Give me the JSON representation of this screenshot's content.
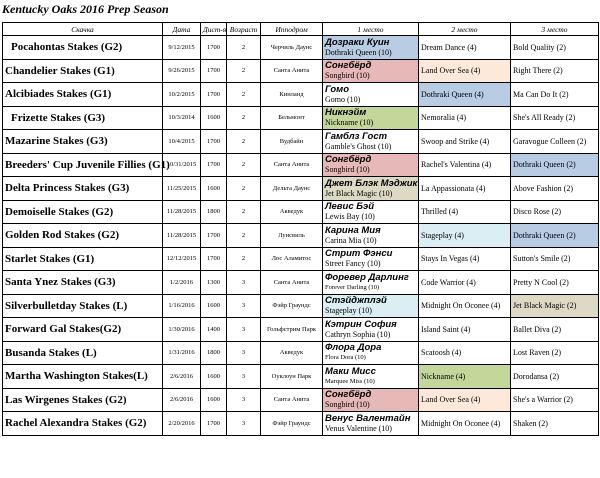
{
  "title": "Kentucky Oaks 2016 Prep Season",
  "headers": [
    "Скачка",
    "Дата",
    "Дист-я",
    "Возраст",
    "Ипподром",
    "1 место",
    "2 место",
    "3 место"
  ],
  "colors": {
    "blue": "#b8cce4",
    "pink": "#e6b8b7",
    "green": "#c4d79b",
    "peach": "#fde9d9",
    "cyan": "#daeef3",
    "tan": "#ddd9c4"
  },
  "rows": [
    {
      "race": "Pocahontas Stakes (G2)",
      "indent": true,
      "date": "9/12/2015",
      "dist": "1700",
      "age": "2",
      "track": "Черчиль Даунс",
      "winner": "Дозраки Куин",
      "winner_sub": "Dothraki Queen (10)",
      "second": "Dream Dance (4)",
      "third": "Bold Quality (2)",
      "winner_color": "blue",
      "second_color": "",
      "third_color": ""
    },
    {
      "race": "Chandelier Stakes (G1)",
      "indent": false,
      "date": "9/26/2015",
      "dist": "1700",
      "age": "2",
      "track": "Санта Анита",
      "winner": "Сонгбёрд",
      "winner_sub": "Songbird (10)",
      "second": "Land Over Sea (4)",
      "third": "Right There (2)",
      "winner_color": "pink",
      "second_color": "peach",
      "third_color": ""
    },
    {
      "race": "Alcibiades Stakes (G1)",
      "indent": false,
      "date": "10/2/2015",
      "dist": "1700",
      "age": "2",
      "track": "Кинланд",
      "winner": "Гомо",
      "winner_sub": "Gomo (10)",
      "second": "Dothraki Queen (4)",
      "third": "Ma Can Do It (2)",
      "winner_color": "",
      "second_color": "blue",
      "third_color": ""
    },
    {
      "race": "Frizette Stakes (G3)",
      "indent": true,
      "date": "10/3/2014",
      "dist": "1600",
      "age": "2",
      "track": "Бельмонт",
      "winner": "Никнэйм",
      "winner_sub": "Nickname (10)",
      "second": "Nemoralia (4)",
      "third": "She's All Ready (2)",
      "winner_color": "green",
      "second_color": "",
      "third_color": ""
    },
    {
      "race": "Mazarine Stakes (G3)",
      "indent": false,
      "date": "10/4/2015",
      "dist": "1700",
      "age": "2",
      "track": "Вудбайн",
      "winner": "Гамблз Гост",
      "winner_sub": "Gamble's Ghost (10)",
      "second": "Swoop and Strike (4)",
      "third": "Garavogue Colleen (2)",
      "winner_color": "",
      "second_color": "",
      "third_color": ""
    },
    {
      "race": "Breeders' Cup Juvenile Fillies (G1)",
      "indent": false,
      "date": "10/31/2015",
      "dist": "1700",
      "age": "2",
      "track": "Санта Анита",
      "winner": "Сонгбёрд",
      "winner_sub": "Songbird (10)",
      "second": "Rachel's Valentina (4)",
      "third": "Dothraki Queen (2)",
      "winner_color": "pink",
      "second_color": "",
      "third_color": "blue"
    },
    {
      "race": "Delta Princess Stakes (G3)",
      "indent": false,
      "date": "11/25/2015",
      "dist": "1600",
      "age": "2",
      "track": "Дельта Даунс",
      "winner": "Джет Блэк Мэджик",
      "winner_sub": "Jet Black Magic (10)",
      "second": "La Appassionata (4)",
      "third": "Above Fashion (2)",
      "winner_color": "tan",
      "second_color": "",
      "third_color": ""
    },
    {
      "race": "Demoiselle Stakes (G2)",
      "indent": false,
      "date": "11/28/2015",
      "dist": "1800",
      "age": "2",
      "track": "Акведук",
      "winner": "Левис Бэй",
      "winner_sub": "Lewis Bay (10)",
      "second": "Thrilled (4)",
      "third": "Disco Rose (2)",
      "winner_color": "",
      "second_color": "",
      "third_color": ""
    },
    {
      "race": "Golden Rod Stakes (G2)",
      "indent": false,
      "date": "11/28/2015",
      "dist": "1700",
      "age": "2",
      "track": "Луисвиль",
      "winner": "Карина Мия",
      "winner_sub": "Carina Mia (10)",
      "second": "Stageplay (4)",
      "third": "Dothraki Queen (2)",
      "winner_color": "",
      "second_color": "cyan",
      "third_color": "blue"
    },
    {
      "race": "Starlet Stakes (G1)",
      "indent": false,
      "date": "12/12/2015",
      "dist": "1700",
      "age": "2",
      "track": "Лос Аламитос",
      "winner": "Стрит Фэнси",
      "winner_sub": "Street Fancy (10)",
      "second": "Stays In Vegas (4)",
      "third": "Sutton's Smile (2)",
      "winner_color": "",
      "second_color": "",
      "third_color": ""
    },
    {
      "race": "Santa Ynez Stakes (G3)",
      "indent": false,
      "date": "1/2/2016",
      "dist": "1300",
      "age": "3",
      "track": "Санта Анита",
      "winner": "Форевер Дарлинг",
      "winner_sub": "Forever Darling (10)",
      "winner_sub_small": true,
      "second": "Code Warrior (4)",
      "third": "Pretty N Cool (2)",
      "winner_color": "",
      "second_color": "",
      "third_color": ""
    },
    {
      "race": "Silverbulletday Stakes (L)",
      "indent": false,
      "date": "1/16/2016",
      "dist": "1600",
      "age": "3",
      "track": "Фэйр Граундс",
      "winner": "Стэйджплэй",
      "winner_sub": "Stageplay (10)",
      "second": "Midnight On Oconee (4)",
      "third": "Jet Black Magic (2)",
      "winner_color": "cyan",
      "second_color": "",
      "third_color": "tan"
    },
    {
      "race": "Forward Gal Stakes(G2)",
      "indent": false,
      "date": "1/30/2016",
      "dist": "1400",
      "age": "3",
      "track": "Гольфстрим Парк",
      "winner": "Кэтрин София",
      "winner_sub": "Cathryn Sophia (10)",
      "second": "Island Saint (4)",
      "third": "Ballet Diva (2)",
      "winner_color": "",
      "second_color": "",
      "third_color": ""
    },
    {
      "race": "Busanda Stakes (L)",
      "indent": false,
      "date": "1/31/2016",
      "dist": "1800",
      "age": "3",
      "track": "Акведук",
      "winner": "Флора Дора",
      "winner_sub": "Flora Dora (10)",
      "winner_sub_small": true,
      "second": "Scatoosh (4)",
      "third": "Lost Raven (2)",
      "winner_color": "",
      "second_color": "",
      "third_color": ""
    },
    {
      "race": "Martha Washington Stakes(L)",
      "indent": false,
      "date": "2/6/2016",
      "dist": "1600",
      "age": "3",
      "track": "Оуклоун Парк",
      "winner": "Маки Мисс",
      "winner_sub": "Marquee Miss (10)",
      "winner_sub_small": true,
      "second": "Nickname (4)",
      "third": "Dorodansa (2)",
      "winner_color": "",
      "second_color": "green",
      "third_color": ""
    },
    {
      "race": "Las Wirgenes Stakes (G2)",
      "indent": false,
      "date": "2/6/2016",
      "dist": "1600",
      "age": "3",
      "track": "Санта Анита",
      "winner": "Сонгбёрд",
      "winner_sub": "Songbird (10)",
      "second": "Land Over Sea (4)",
      "third": "She's a Warrior (2)",
      "winner_color": "pink",
      "second_color": "peach",
      "third_color": ""
    },
    {
      "race": "Rachel Alexandra Stakes (G2)",
      "indent": false,
      "date": "2/20/2016",
      "dist": "1700",
      "age": "3",
      "track": "Фэйр Граундс",
      "winner": "Венус Валентайн",
      "winner_sub": "Venus Valentine (10)",
      "second": "Midnight On Oconee (4)",
      "third": "Shaken (2)",
      "winner_color": "",
      "second_color": "",
      "third_color": ""
    }
  ]
}
